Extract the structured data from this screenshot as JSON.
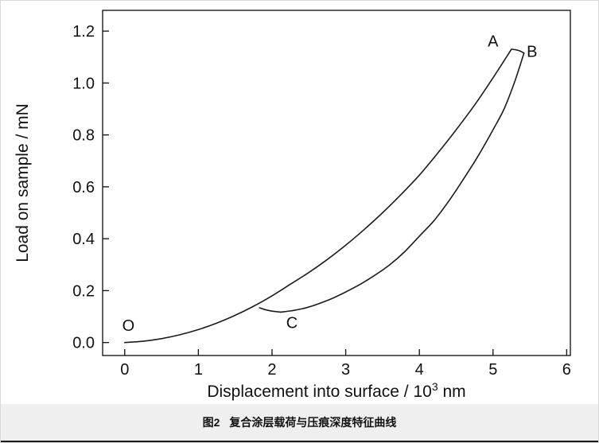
{
  "figure": {
    "caption_label": "图2",
    "caption_text": "复合涂层载荷与压痕深度特征曲线"
  },
  "chart_data": {
    "type": "line",
    "title": "",
    "description": "Nanoindentation load-displacement characteristic curve: loading O to A, hold A to B, unloading B to C",
    "xlabel": {
      "prefix": "Displacement into surface / 10",
      "sup": "3",
      "suffix": " nm"
    },
    "ylabel": "Load on sample / mN",
    "xlim": [
      -0.3,
      6.05
    ],
    "ylim": [
      -0.05,
      1.28
    ],
    "xticks": {
      "values": [
        0,
        1,
        2,
        3,
        4,
        5,
        6
      ],
      "labels": [
        "0",
        "1",
        "2",
        "3",
        "4",
        "5",
        "6"
      ]
    },
    "yticks": {
      "values": [
        0,
        0.2,
        0.4,
        0.6,
        0.8,
        1.0,
        1.2
      ],
      "labels": [
        "0.0",
        "0.2",
        "0.4",
        "0.6",
        "0.8",
        "1.0",
        "1.2"
      ]
    },
    "grid": false,
    "legend": "none",
    "line_color": "#1c1c1c",
    "series": [
      {
        "name": "loading O-A",
        "x": [
          0,
          0.25,
          0.5,
          0.75,
          1.0,
          1.25,
          1.5,
          1.75,
          2.0,
          2.25,
          2.5,
          2.75,
          3.0,
          3.25,
          3.5,
          3.75,
          4.0,
          4.25,
          4.5,
          4.75,
          5.0,
          5.25
        ],
        "y": [
          0,
          0.005,
          0.015,
          0.03,
          0.05,
          0.075,
          0.105,
          0.14,
          0.18,
          0.225,
          0.27,
          0.32,
          0.375,
          0.435,
          0.5,
          0.57,
          0.645,
          0.73,
          0.82,
          0.915,
          1.02,
          1.13
        ]
      },
      {
        "name": "hold A-B",
        "x": [
          5.25,
          5.31,
          5.37,
          5.42
        ],
        "y": [
          1.13,
          1.128,
          1.123,
          1.115
        ]
      },
      {
        "name": "unloading B-C",
        "x": [
          5.42,
          5.3,
          5.15,
          5.0,
          4.8,
          4.6,
          4.4,
          4.2,
          4.0,
          3.8,
          3.6,
          3.4,
          3.2,
          3.0,
          2.8,
          2.6,
          2.45,
          2.3,
          2.2,
          2.12
        ],
        "y": [
          1.115,
          1.01,
          0.9,
          0.82,
          0.72,
          0.63,
          0.545,
          0.47,
          0.41,
          0.35,
          0.3,
          0.26,
          0.225,
          0.195,
          0.168,
          0.146,
          0.133,
          0.124,
          0.12,
          0.117
        ]
      },
      {
        "name": "drift tail at C",
        "x": [
          2.12,
          2.0,
          1.9,
          1.83
        ],
        "y": [
          0.117,
          0.121,
          0.127,
          0.134
        ]
      }
    ],
    "point_labels": [
      {
        "text": "O",
        "x": 0.05,
        "y": 0.045
      },
      {
        "text": "A",
        "x": 5.0,
        "y": 1.14
      },
      {
        "text": "B",
        "x": 5.53,
        "y": 1.1
      },
      {
        "text": "C",
        "x": 2.27,
        "y": 0.055
      }
    ]
  }
}
